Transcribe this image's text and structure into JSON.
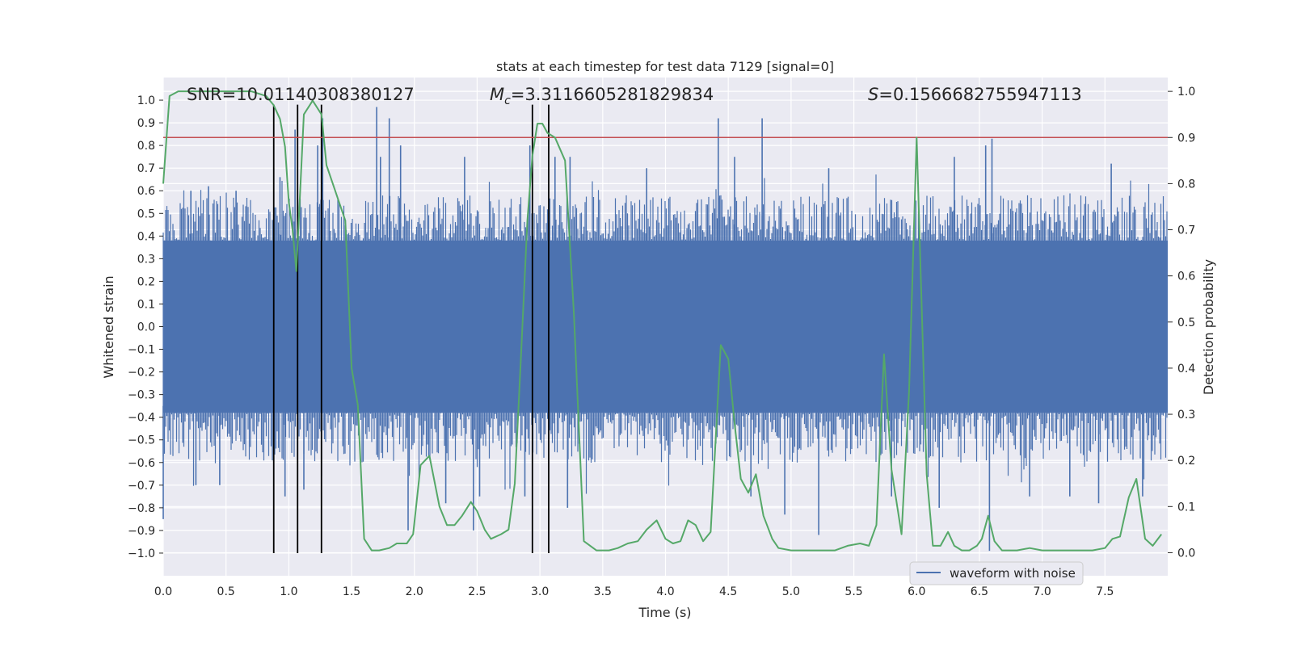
{
  "chart_data": {
    "type": "line",
    "title": "stats at each timestep for test data 7129 [signal=0]",
    "xlabel": "Time (s)",
    "ylabel": "Whitened strain",
    "y2label": "Detection probability",
    "xlim": [
      0,
      8.0
    ],
    "ylim": [
      -1.1,
      1.1
    ],
    "y2lim": [
      -0.05,
      1.03
    ],
    "xticks": [
      "0.0",
      "0.5",
      "1.0",
      "1.5",
      "2.0",
      "2.5",
      "3.0",
      "3.5",
      "4.0",
      "4.5",
      "5.0",
      "5.5",
      "6.0",
      "6.5",
      "7.0",
      "7.5"
    ],
    "yticks": [
      "1.0",
      "0.9",
      "0.8",
      "0.7",
      "0.6",
      "0.5",
      "0.4",
      "0.3",
      "0.2",
      "0.1",
      "0.0",
      "-0.1",
      "-0.2",
      "-0.3",
      "-0.4",
      "-0.5",
      "-0.6",
      "-0.7",
      "-0.8",
      "-0.9",
      "-1.0"
    ],
    "y2ticks": [
      "1.0",
      "0.9",
      "0.8",
      "0.7",
      "0.6",
      "0.5",
      "0.4",
      "0.3",
      "0.2",
      "0.1",
      "0.0"
    ],
    "grid": true,
    "annotations": {
      "snr": "SNR=10.01140308380127",
      "mc_symbol": "M",
      "mc_sub": "c",
      "mc_value": "=3.3116605281829834",
      "s_symbol": "S",
      "s_value": "=0.1566682755947113"
    },
    "threshold": {
      "value": 0.9,
      "axis": "right",
      "color": "#c44e52"
    },
    "vertical_markers_s": [
      0.88,
      1.07,
      1.26,
      2.94,
      3.07
    ],
    "legend": {
      "label": "waveform with noise",
      "location": "lower-right"
    },
    "series": [
      {
        "name": "waveform with noise",
        "axis": "left",
        "color": "#4c72b0",
        "kind": "noise",
        "duration_s": 8.0,
        "core_amplitude": 0.38,
        "peaks": [
          [
            0.22,
            0.6
          ],
          [
            0.36,
            0.62
          ],
          [
            0.58,
            0.6
          ],
          [
            0.93,
            0.66
          ],
          [
            1.05,
            0.87
          ],
          [
            1.23,
            0.8
          ],
          [
            1.27,
            0.92
          ],
          [
            1.7,
            0.97
          ],
          [
            1.73,
            0.75
          ],
          [
            1.8,
            0.92
          ],
          [
            1.89,
            0.8
          ],
          [
            2.4,
            0.75
          ],
          [
            2.92,
            0.8
          ],
          [
            3.12,
            0.75
          ],
          [
            3.24,
            0.75
          ],
          [
            3.85,
            0.7
          ],
          [
            4.42,
            0.92
          ],
          [
            4.55,
            0.75
          ],
          [
            4.77,
            0.92
          ],
          [
            5.3,
            0.7
          ],
          [
            6.3,
            0.75
          ],
          [
            6.55,
            0.8
          ],
          [
            6.6,
            0.83
          ],
          [
            7.55,
            0.72
          ]
        ],
        "troughs": [
          [
            0.0,
            -0.85
          ],
          [
            0.26,
            -0.7
          ],
          [
            0.45,
            -0.7
          ],
          [
            0.97,
            -0.75
          ],
          [
            1.12,
            -0.72
          ],
          [
            1.26,
            -0.66
          ],
          [
            1.95,
            -0.9
          ],
          [
            2.25,
            -0.78
          ],
          [
            2.47,
            -0.9
          ],
          [
            2.52,
            -0.75
          ],
          [
            2.88,
            -0.75
          ],
          [
            3.22,
            -0.8
          ],
          [
            4.68,
            -0.75
          ],
          [
            4.95,
            -0.83
          ],
          [
            5.22,
            -0.92
          ],
          [
            5.8,
            -0.75
          ],
          [
            6.18,
            -0.8
          ],
          [
            6.58,
            -0.99
          ],
          [
            6.9,
            -0.75
          ],
          [
            7.22,
            -0.75
          ],
          [
            7.45,
            -0.78
          ],
          [
            7.8,
            -0.75
          ]
        ]
      },
      {
        "name": "detection probability",
        "axis": "right",
        "color": "#55a868",
        "x": [
          0,
          0.05,
          0.12,
          0.2,
          0.5,
          0.7,
          0.82,
          0.88,
          0.93,
          0.97,
          1.0,
          1.03,
          1.06,
          1.12,
          1.19,
          1.26,
          1.3,
          1.35,
          1.45,
          1.5,
          1.55,
          1.6,
          1.66,
          1.72,
          1.8,
          1.86,
          1.94,
          1.99,
          2.05,
          2.12,
          2.2,
          2.26,
          2.32,
          2.38,
          2.45,
          2.5,
          2.56,
          2.61,
          2.69,
          2.75,
          2.8,
          2.85,
          2.9,
          2.94,
          2.98,
          3.02,
          3.06,
          3.12,
          3.2,
          3.27,
          3.35,
          3.45,
          3.55,
          3.62,
          3.7,
          3.78,
          3.85,
          3.93,
          4.0,
          4.06,
          4.12,
          4.18,
          4.24,
          4.3,
          4.36,
          4.44,
          4.5,
          4.55,
          4.6,
          4.66,
          4.72,
          4.78,
          4.85,
          4.9,
          5.0,
          5.2,
          5.35,
          5.45,
          5.55,
          5.62,
          5.68,
          5.74,
          5.8,
          5.88,
          5.94,
          6.0,
          6.08,
          6.13,
          6.19,
          6.25,
          6.3,
          6.36,
          6.42,
          6.48,
          6.52,
          6.57,
          6.62,
          6.68,
          6.8,
          6.9,
          7.0,
          7.2,
          7.4,
          7.5,
          7.56,
          7.62,
          7.69,
          7.75,
          7.82,
          7.88,
          7.95
        ],
        "y": [
          0.8,
          0.99,
          1.0,
          1.0,
          1.0,
          1.0,
          0.99,
          0.97,
          0.94,
          0.88,
          0.76,
          0.7,
          0.61,
          0.95,
          0.98,
          0.95,
          0.84,
          0.8,
          0.72,
          0.4,
          0.32,
          0.03,
          0.005,
          0.005,
          0.01,
          0.02,
          0.02,
          0.04,
          0.19,
          0.21,
          0.1,
          0.06,
          0.06,
          0.08,
          0.11,
          0.09,
          0.05,
          0.03,
          0.04,
          0.05,
          0.15,
          0.43,
          0.72,
          0.86,
          0.93,
          0.93,
          0.91,
          0.9,
          0.85,
          0.52,
          0.025,
          0.005,
          0.005,
          0.01,
          0.02,
          0.025,
          0.05,
          0.07,
          0.03,
          0.02,
          0.025,
          0.07,
          0.06,
          0.025,
          0.045,
          0.45,
          0.42,
          0.28,
          0.16,
          0.13,
          0.17,
          0.08,
          0.03,
          0.01,
          0.005,
          0.005,
          0.005,
          0.015,
          0.02,
          0.015,
          0.06,
          0.43,
          0.18,
          0.04,
          0.35,
          0.9,
          0.17,
          0.015,
          0.015,
          0.045,
          0.015,
          0.005,
          0.005,
          0.015,
          0.03,
          0.08,
          0.025,
          0.005,
          0.005,
          0.01,
          0.005,
          0.005,
          0.005,
          0.01,
          0.03,
          0.035,
          0.12,
          0.16,
          0.03,
          0.015,
          0.04
        ]
      }
    ]
  }
}
